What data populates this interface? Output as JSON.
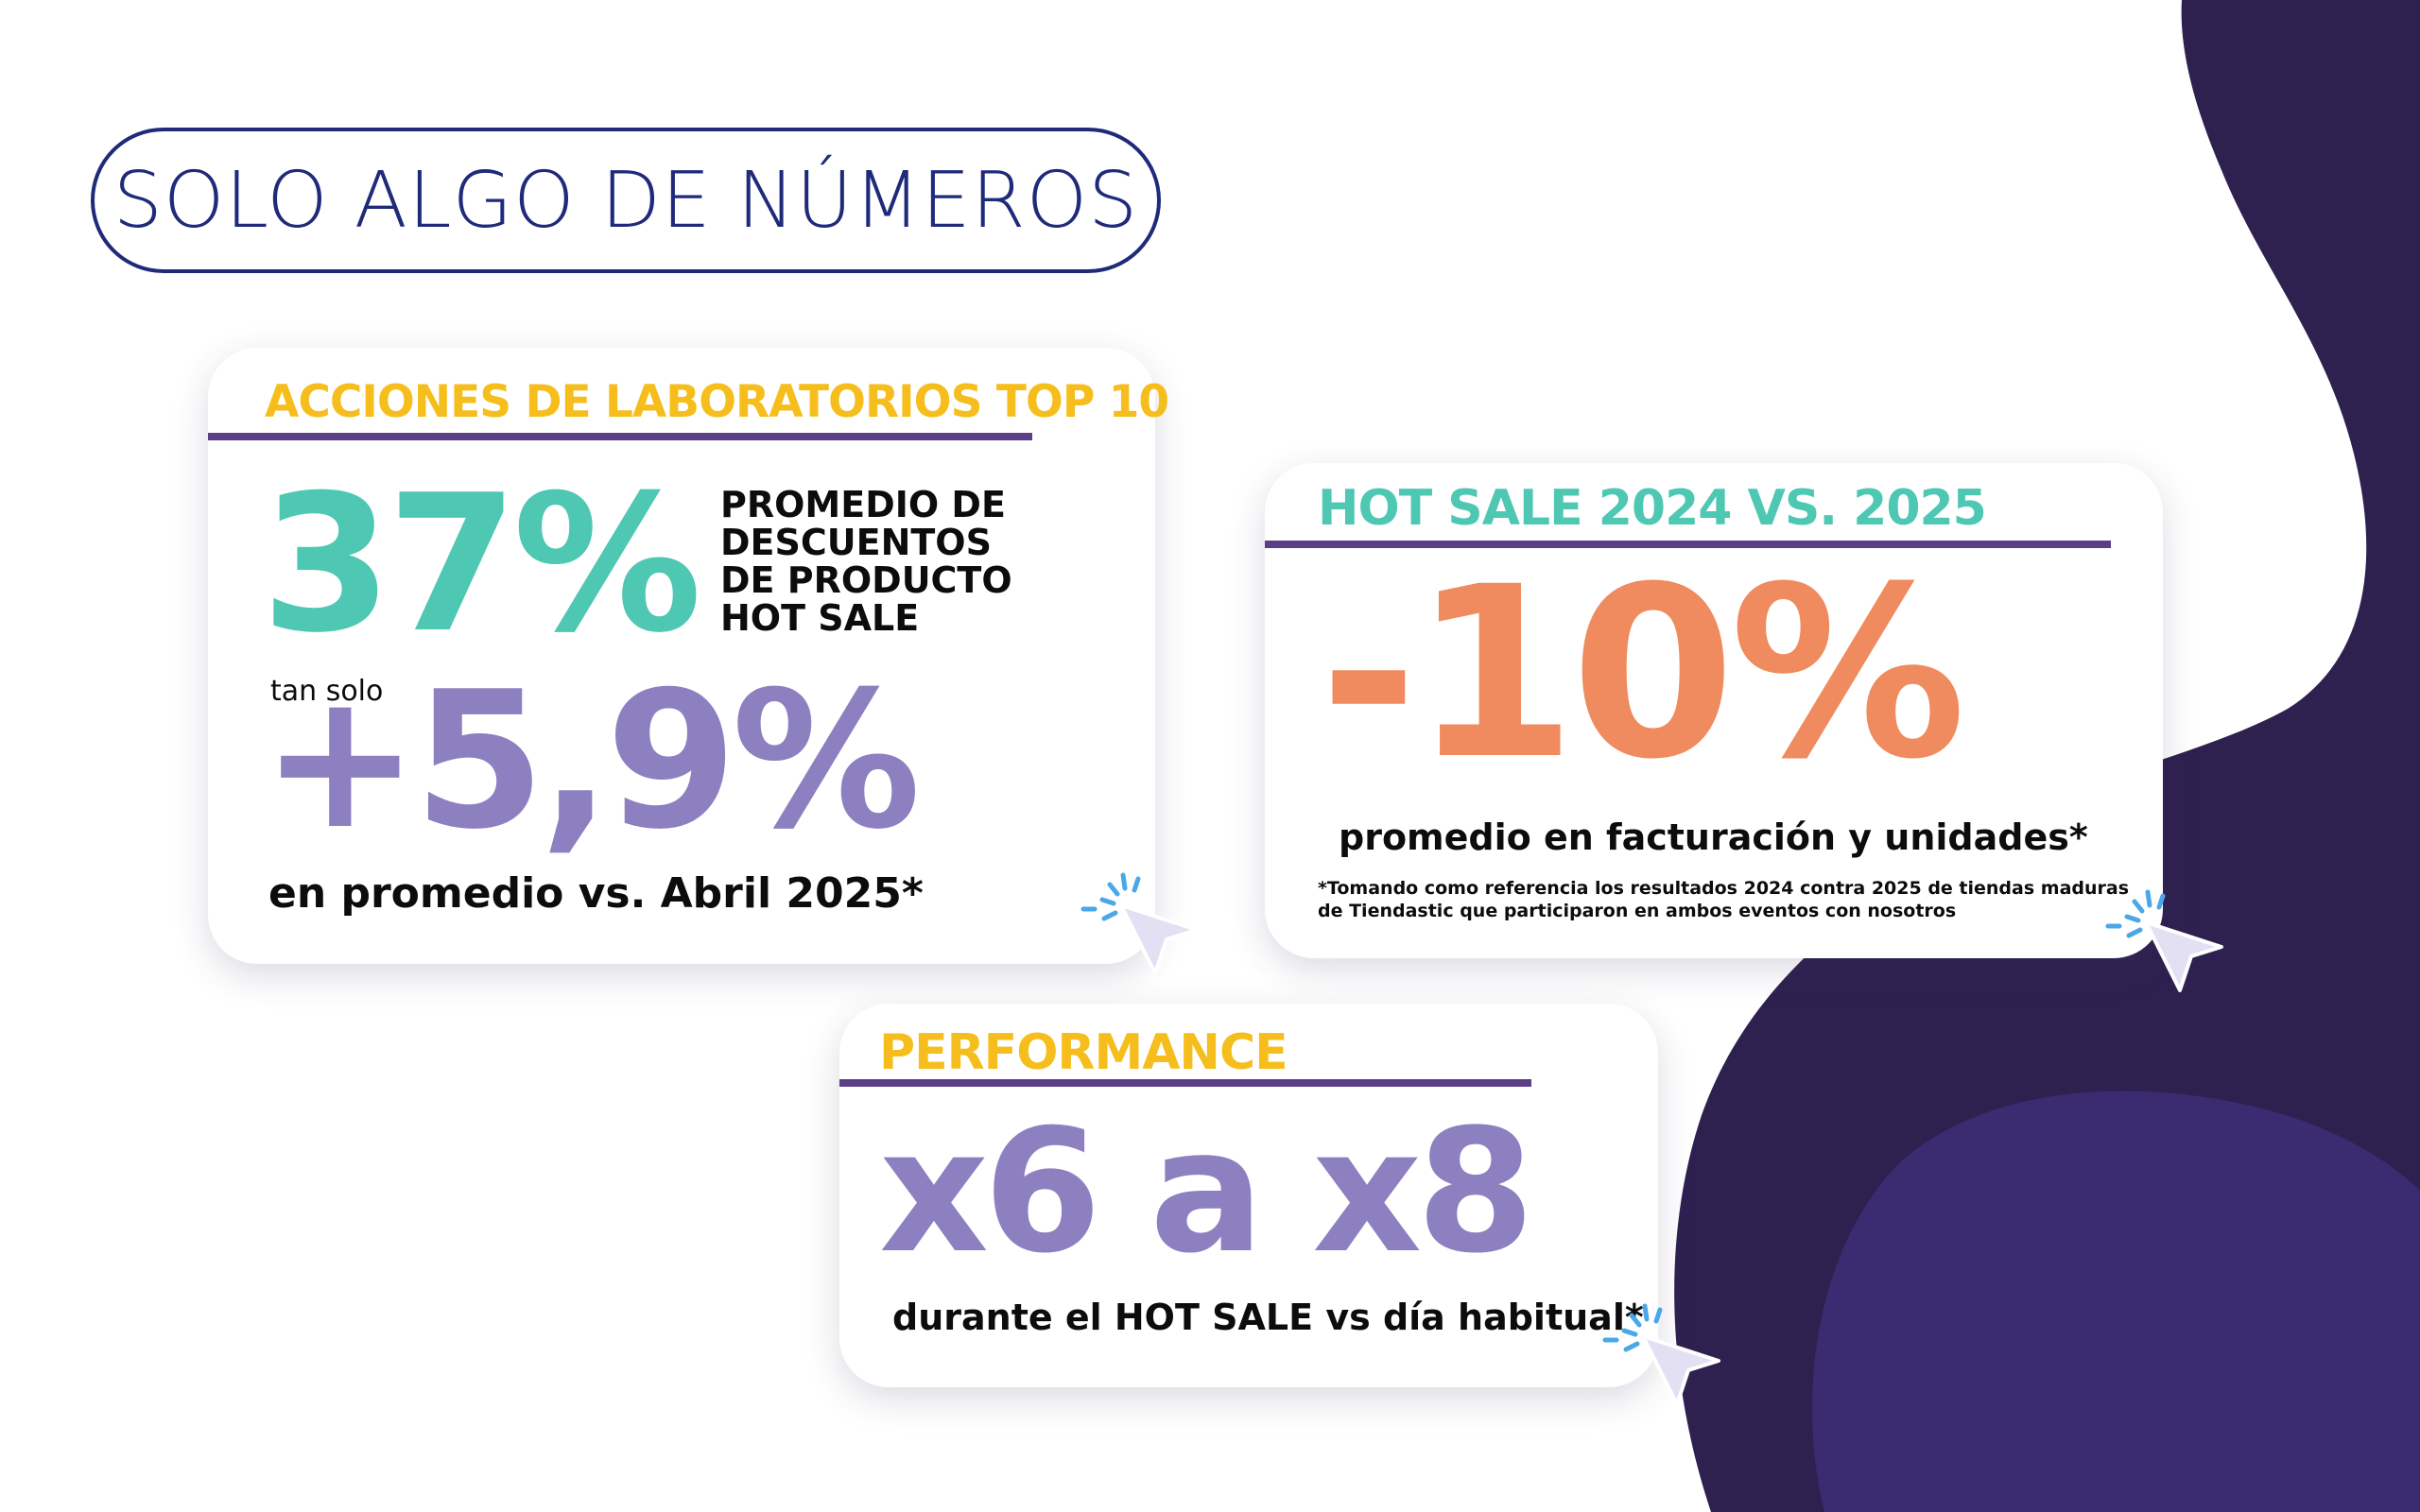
{
  "colors": {
    "navy": "#1f2a7a",
    "purple_dark": "#2e2150",
    "purple_mid": "#3b2b70",
    "yellow": "#f6be1c",
    "teal": "#4ec7b3",
    "lavender": "#8c80c0",
    "orange": "#ef8b5f",
    "rule": "#5b3f86"
  },
  "title": "SOLO ALGO DE NÚMEROS",
  "card1": {
    "heading": "ACCIONES DE LABORATORIOS TOP 10",
    "big_value": "37%",
    "side_lines": [
      "PROMEDIO DE",
      "DESCUENTOS",
      "DE PRODUCTO",
      "HOT SALE"
    ],
    "small_label": "tan solo",
    "value2": "+5,9%",
    "footer": "en promedio vs. Abril 2025*"
  },
  "card2": {
    "heading": "HOT SALE 2024 VS. 2025",
    "big_value": "-10%",
    "subtitle": "promedio en facturación y unidades*",
    "footnote_lines": [
      "*Tomando como referencia los resultados 2024 contra 2025 de tiendas maduras",
      "de Tiendastic que participaron en ambos eventos con nosotros"
    ]
  },
  "card3": {
    "heading": "PERFORMANCE",
    "big_value": "x6 a x8",
    "footer": "durante el HOT SALE vs día habitual*"
  },
  "icons": [
    "cursor-click-icon",
    "cursor-click-icon",
    "cursor-click-icon"
  ]
}
